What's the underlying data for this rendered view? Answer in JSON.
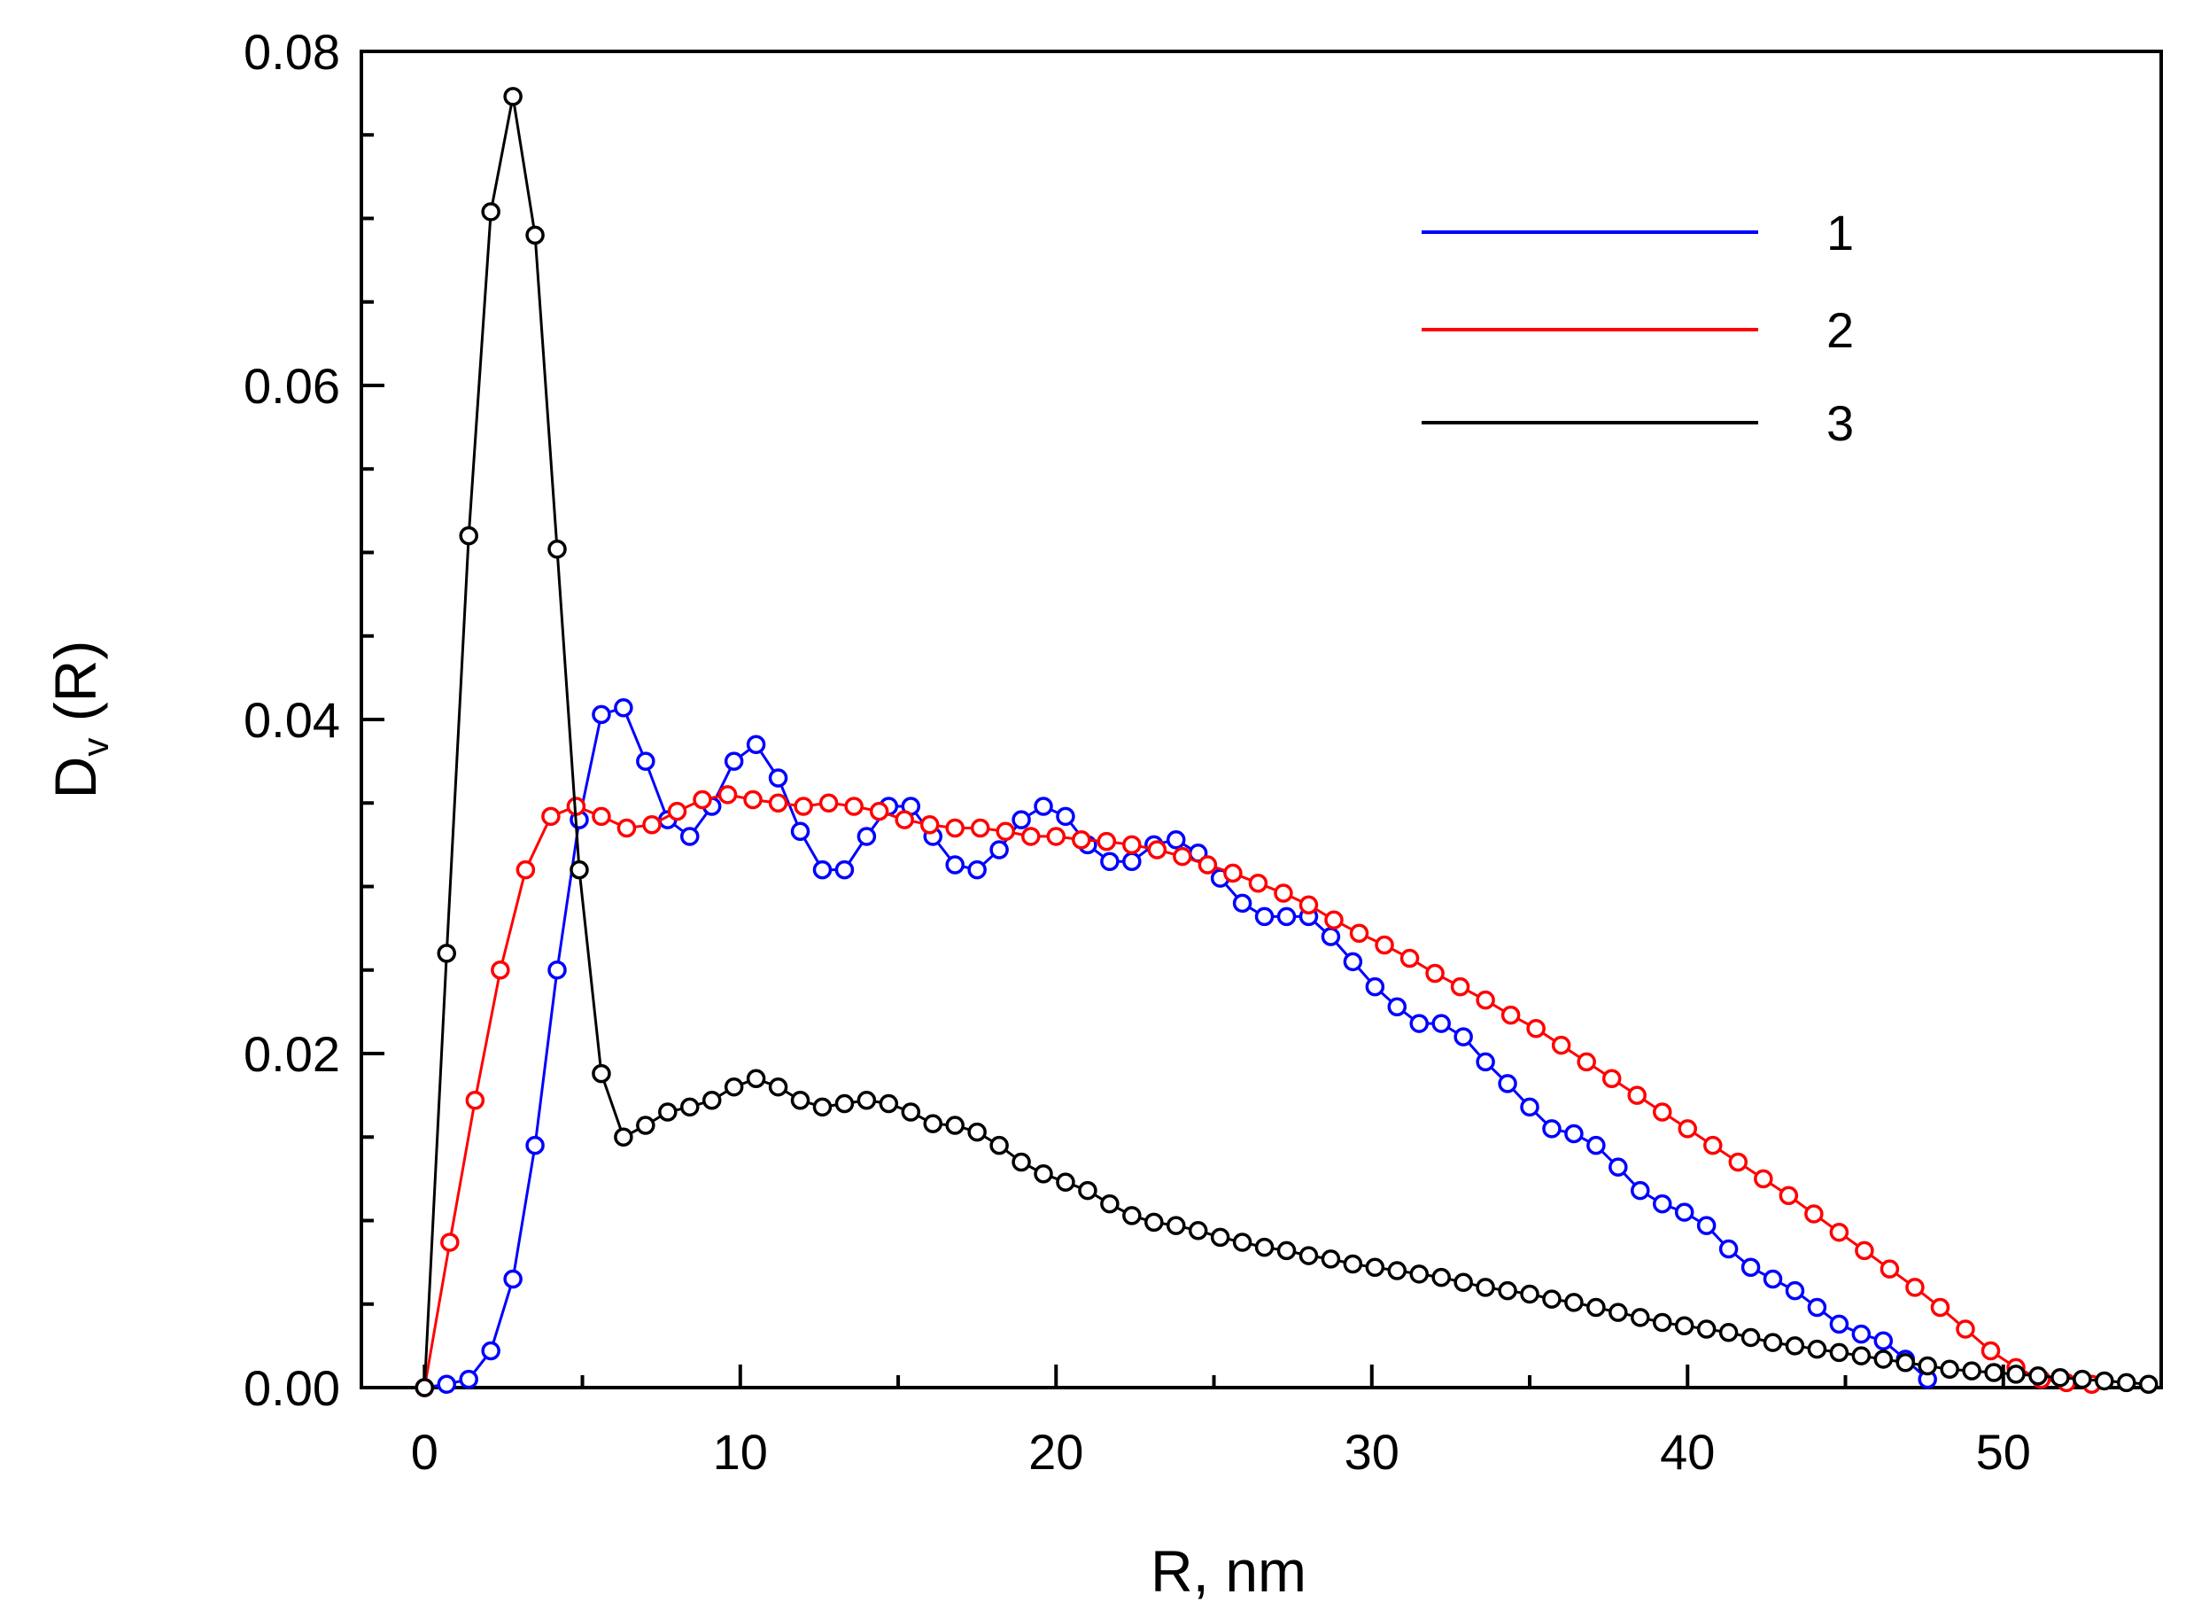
{
  "chart_data": {
    "type": "line",
    "title": "",
    "xlabel": "R, nm",
    "ylabel": {
      "main": "D",
      "sub": "v",
      "suffix": " (R)"
    },
    "xlim": [
      -2,
      55
    ],
    "ylim": [
      0,
      0.08
    ],
    "xticks": [
      0,
      10,
      20,
      30,
      40,
      50
    ],
    "xtick_labels": [
      "0",
      "10",
      "20",
      "30",
      "40",
      "50"
    ],
    "yticks": [
      0,
      0.02,
      0.04,
      0.06,
      0.08
    ],
    "ytick_labels": [
      "0.00",
      "0.02",
      "0.04",
      "0.06",
      "0.08"
    ],
    "grid": false,
    "legend_position": "top-right",
    "marker": "open-circle",
    "series": [
      {
        "name": "1",
        "color": "#0000ff",
        "x": [
          0,
          0.7,
          1.4,
          2.1,
          2.8,
          3.5,
          4.2,
          4.9,
          5.6,
          6.3,
          7.0,
          7.7,
          8.4,
          9.1,
          9.8,
          10.5,
          11.2,
          11.9,
          12.6,
          13.3,
          14.0,
          14.7,
          15.4,
          16.1,
          16.8,
          17.5,
          18.2,
          18.9,
          19.6,
          20.3,
          21.0,
          21.7,
          22.4,
          23.1,
          23.8,
          24.5,
          25.2,
          25.9,
          26.6,
          27.3,
          28.0,
          28.7,
          29.4,
          30.1,
          30.8,
          31.5,
          32.2,
          32.9,
          33.6,
          34.3,
          35.0,
          35.7,
          36.4,
          37.1,
          37.8,
          38.5,
          39.2,
          39.9,
          40.6,
          41.3,
          42.0,
          42.7,
          43.4,
          44.1,
          44.8,
          45.5,
          46.2,
          46.9,
          47.6
        ],
        "y": [
          0,
          0.0002,
          0.0005,
          0.0022,
          0.0065,
          0.0145,
          0.025,
          0.034,
          0.0403,
          0.0407,
          0.0375,
          0.034,
          0.033,
          0.0348,
          0.0375,
          0.0385,
          0.0365,
          0.0333,
          0.031,
          0.031,
          0.033,
          0.0348,
          0.0348,
          0.033,
          0.0313,
          0.031,
          0.0322,
          0.034,
          0.0348,
          0.0342,
          0.0325,
          0.0315,
          0.0315,
          0.0325,
          0.0328,
          0.032,
          0.0305,
          0.029,
          0.0282,
          0.0282,
          0.0282,
          0.027,
          0.0255,
          0.024,
          0.0228,
          0.0218,
          0.0218,
          0.021,
          0.0195,
          0.0182,
          0.0168,
          0.0155,
          0.0152,
          0.0145,
          0.0132,
          0.0118,
          0.011,
          0.0105,
          0.0097,
          0.0083,
          0.0072,
          0.0065,
          0.0058,
          0.0048,
          0.0038,
          0.0032,
          0.0028,
          0.0017,
          0.0005
        ]
      },
      {
        "name": "2",
        "color": "#ff0000",
        "x": [
          0,
          0.8,
          1.6,
          2.4,
          3.2,
          4.0,
          4.8,
          5.6,
          6.4,
          7.2,
          8.0,
          8.8,
          9.6,
          10.4,
          11.2,
          12.0,
          12.8,
          13.6,
          14.4,
          15.2,
          16.0,
          16.8,
          17.6,
          18.4,
          19.2,
          20.0,
          20.8,
          21.6,
          22.4,
          23.2,
          24.0,
          24.8,
          25.6,
          26.4,
          27.2,
          28.0,
          28.8,
          29.6,
          30.4,
          31.2,
          32.0,
          32.8,
          33.6,
          34.4,
          35.2,
          36.0,
          36.8,
          37.6,
          38.4,
          39.2,
          40.0,
          40.8,
          41.6,
          42.4,
          43.2,
          44.0,
          44.8,
          45.6,
          46.4,
          47.2,
          48.0,
          48.8,
          49.6,
          50.4,
          51.2,
          52.0,
          52.8
        ],
        "y": [
          0,
          0.0087,
          0.0172,
          0.025,
          0.031,
          0.0342,
          0.0348,
          0.0342,
          0.0335,
          0.0337,
          0.0345,
          0.0352,
          0.0355,
          0.0352,
          0.035,
          0.0348,
          0.035,
          0.0348,
          0.0345,
          0.034,
          0.0337,
          0.0335,
          0.0335,
          0.0333,
          0.033,
          0.033,
          0.0328,
          0.0327,
          0.0325,
          0.0322,
          0.0318,
          0.0313,
          0.0308,
          0.0302,
          0.0296,
          0.0289,
          0.028,
          0.0272,
          0.0265,
          0.0257,
          0.0248,
          0.024,
          0.0232,
          0.0223,
          0.0215,
          0.0205,
          0.0195,
          0.0185,
          0.0175,
          0.0165,
          0.0155,
          0.0145,
          0.0135,
          0.0125,
          0.0115,
          0.0104,
          0.0093,
          0.0082,
          0.0071,
          0.006,
          0.0048,
          0.0035,
          0.0022,
          0.0012,
          0.0005,
          0.0003,
          0.0002
        ]
      },
      {
        "name": "3",
        "color": "#000000",
        "x": [
          0,
          0.7,
          1.4,
          2.1,
          2.8,
          3.5,
          4.2,
          4.9,
          5.6,
          6.3,
          7.0,
          7.7,
          8.4,
          9.1,
          9.8,
          10.5,
          11.2,
          11.9,
          12.6,
          13.3,
          14.0,
          14.7,
          15.4,
          16.1,
          16.8,
          17.5,
          18.2,
          18.9,
          19.6,
          20.3,
          21.0,
          21.7,
          22.4,
          23.1,
          23.8,
          24.5,
          25.2,
          25.9,
          26.6,
          27.3,
          28.0,
          28.7,
          29.4,
          30.1,
          30.8,
          31.5,
          32.2,
          32.9,
          33.6,
          34.3,
          35.0,
          35.7,
          36.4,
          37.1,
          37.8,
          38.5,
          39.2,
          39.9,
          40.6,
          41.3,
          42.0,
          42.7,
          43.4,
          44.1,
          44.8,
          45.5,
          46.2,
          46.9,
          47.6,
          48.3,
          49.0,
          49.7,
          50.4,
          51.1,
          51.8,
          52.5,
          53.2,
          53.9,
          54.6
        ],
        "y": [
          0,
          0.026,
          0.051,
          0.0704,
          0.0773,
          0.069,
          0.0502,
          0.031,
          0.0188,
          0.015,
          0.0157,
          0.0165,
          0.0168,
          0.0172,
          0.018,
          0.0185,
          0.018,
          0.0172,
          0.0168,
          0.017,
          0.0172,
          0.017,
          0.0165,
          0.0158,
          0.0157,
          0.0153,
          0.0145,
          0.0135,
          0.0128,
          0.0123,
          0.0118,
          0.011,
          0.0103,
          0.0099,
          0.0097,
          0.0094,
          0.009,
          0.0087,
          0.0084,
          0.0082,
          0.0079,
          0.0077,
          0.0074,
          0.0072,
          0.007,
          0.0068,
          0.0066,
          0.0063,
          0.006,
          0.0058,
          0.0056,
          0.0053,
          0.0051,
          0.0048,
          0.0045,
          0.0042,
          0.0039,
          0.0037,
          0.0035,
          0.0033,
          0.003,
          0.0027,
          0.0025,
          0.0023,
          0.0021,
          0.0019,
          0.0017,
          0.0015,
          0.0013,
          0.0011,
          0.001,
          0.0009,
          0.0008,
          0.0007,
          0.0006,
          0.0005,
          0.0004,
          0.0003,
          0.0002
        ]
      }
    ]
  }
}
